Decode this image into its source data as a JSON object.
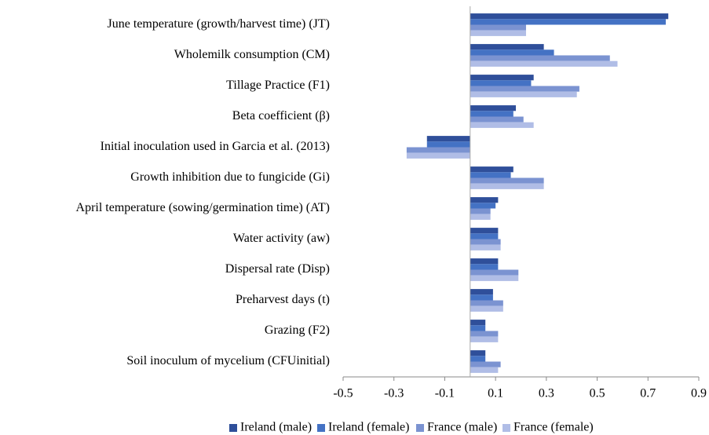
{
  "chart_data": {
    "type": "barh",
    "categories": [
      "June temperature (growth/harvest time) (JT)",
      "Wholemilk consumption (CM)",
      "Tillage Practice (F1)",
      "Beta coefficient (β)",
      "Initial inoculation used in Garcia et al. (2013)",
      "Growth inhibition due to fungicide (Gi)",
      "April temperature (sowing/germination time) (AT)",
      "Water activity (aw)",
      "Dispersal rate (Disp)",
      "Preharvest days (t)",
      "Grazing (F2)",
      "Soil inoculum of mycelium (CFUinitial)"
    ],
    "series": [
      {
        "name": "Ireland (male)",
        "color": "#2f4f9a",
        "values": [
          0.78,
          0.29,
          0.25,
          0.18,
          -0.17,
          0.17,
          0.11,
          0.11,
          0.11,
          0.09,
          0.06,
          0.06
        ]
      },
      {
        "name": "Ireland (female)",
        "color": "#4472c4",
        "values": [
          0.77,
          0.33,
          0.24,
          0.17,
          -0.17,
          0.16,
          0.1,
          0.11,
          0.11,
          0.09,
          0.06,
          0.06
        ]
      },
      {
        "name": "France (male)",
        "color": "#7b93d1",
        "values": [
          0.22,
          0.55,
          0.43,
          0.21,
          -0.25,
          0.29,
          0.08,
          0.12,
          0.19,
          0.13,
          0.11,
          0.12
        ]
      },
      {
        "name": "France (female)",
        "color": "#b0bde6",
        "values": [
          0.22,
          0.58,
          0.42,
          0.25,
          -0.25,
          0.29,
          0.08,
          0.12,
          0.19,
          0.13,
          0.11,
          0.11
        ]
      }
    ],
    "xlim": [
      -0.5,
      0.9
    ],
    "xticks": [
      -0.5,
      -0.3,
      -0.1,
      0.1,
      0.3,
      0.5,
      0.7,
      0.9
    ],
    "grid": false,
    "legend": "bottom"
  }
}
